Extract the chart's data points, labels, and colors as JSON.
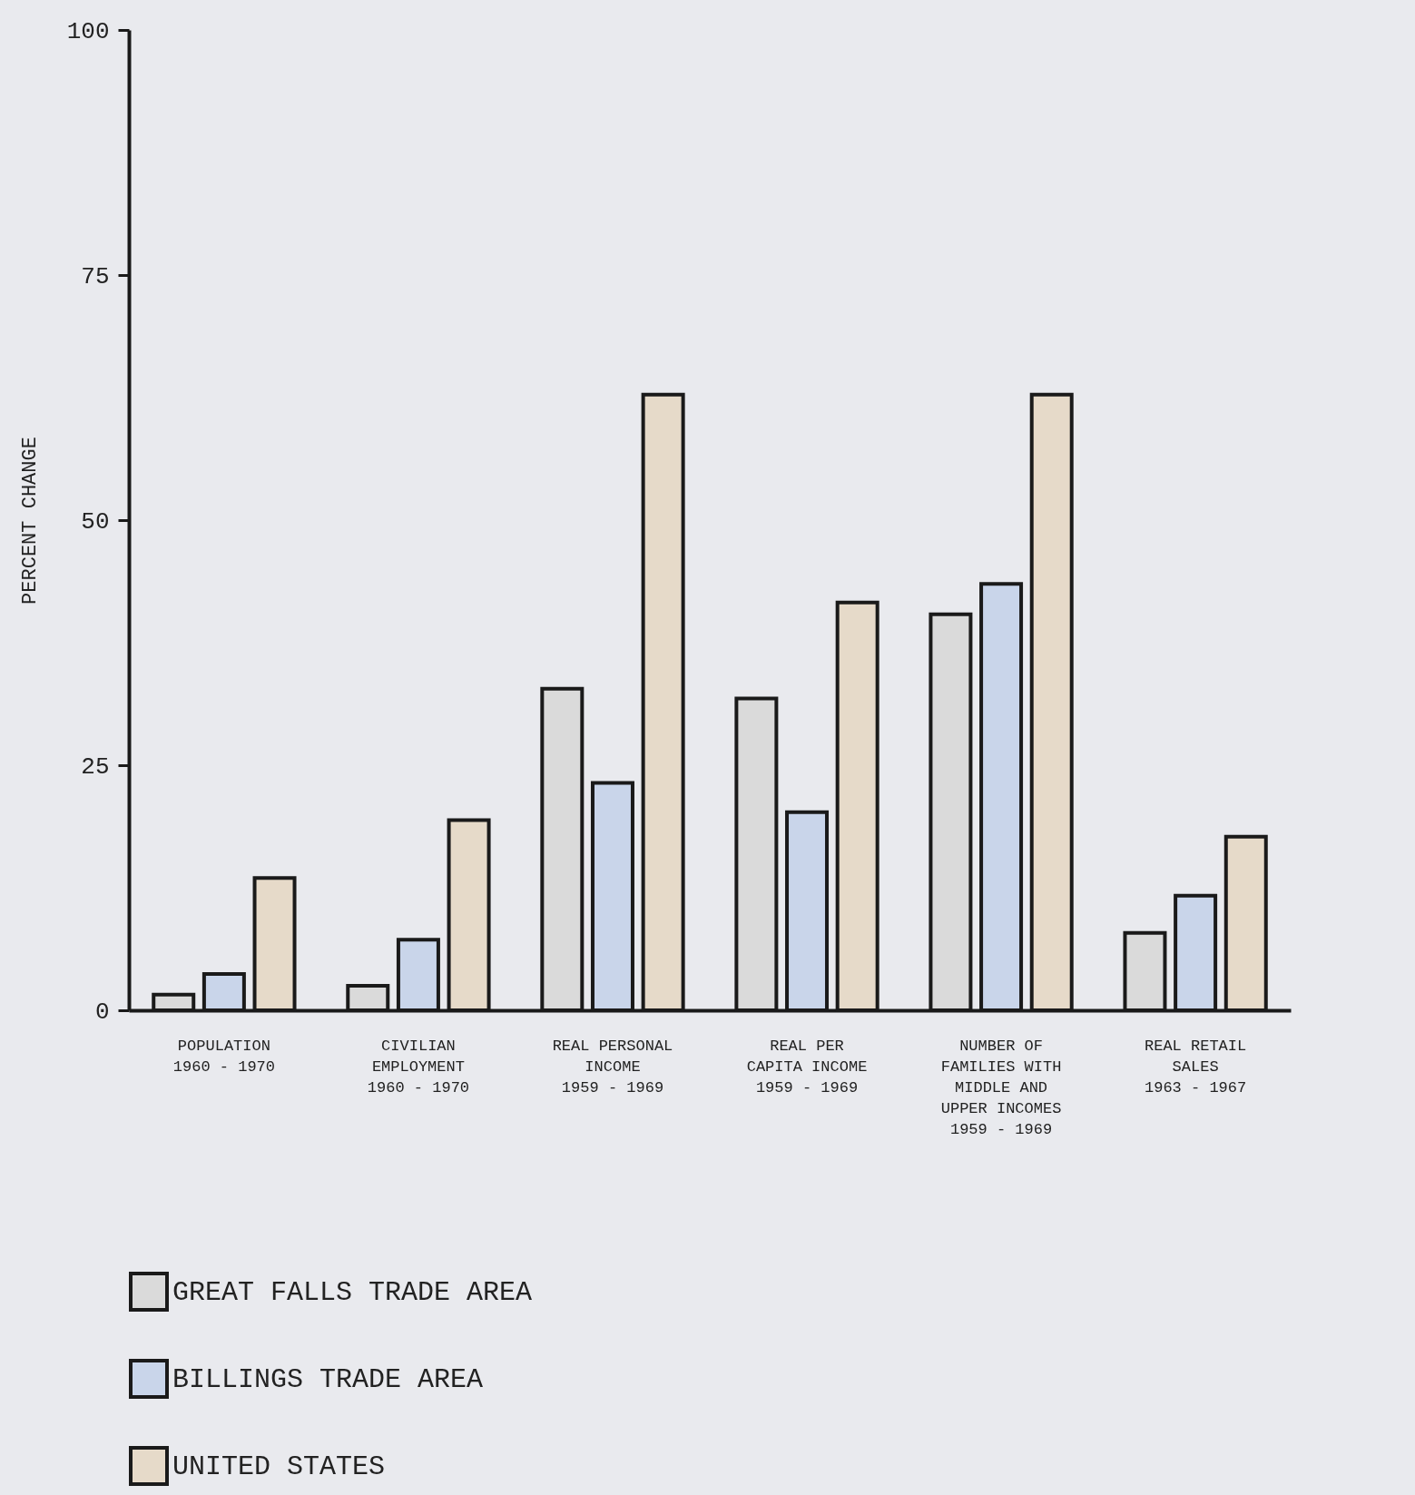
{
  "chart_data": {
    "type": "bar",
    "ylabel": "PERCENT CHANGE",
    "categories": [
      "POPULATION\n1960 - 1970",
      "CIVILIAN\nEMPLOYMENT\n1960 - 1970",
      "REAL PERSONAL\nINCOME\n1959 - 1969",
      "REAL PER\nCAPITA INCOME\n1959 - 1969",
      "NUMBER OF\nFAMILIES WITH\nMIDDLE AND\nUPPER INCOMES\n1959 - 1969",
      "REAL RETAIL\nSALES\n1963 - 1967"
    ],
    "series": [
      {
        "name": "GREAT FALLS TRADE AREA",
        "color": "#dadada",
        "values": [
          1.6,
          2.5,
          32.8,
          31.8,
          40.4,
          7.9
        ]
      },
      {
        "name": "BILLINGS TRADE AREA",
        "color": "#c9d5ea",
        "values": [
          3.7,
          7.2,
          23.2,
          20.2,
          43.5,
          11.7
        ]
      },
      {
        "name": "UNITED STATES",
        "color": "#e6dac9",
        "values": [
          13.5,
          19.4,
          62.8,
          41.6,
          62.8,
          17.7
        ]
      }
    ],
    "ylim": [
      0,
      100
    ],
    "yticks": [
      0,
      25,
      50,
      75,
      100
    ],
    "grid": false,
    "legend": "bottom"
  }
}
